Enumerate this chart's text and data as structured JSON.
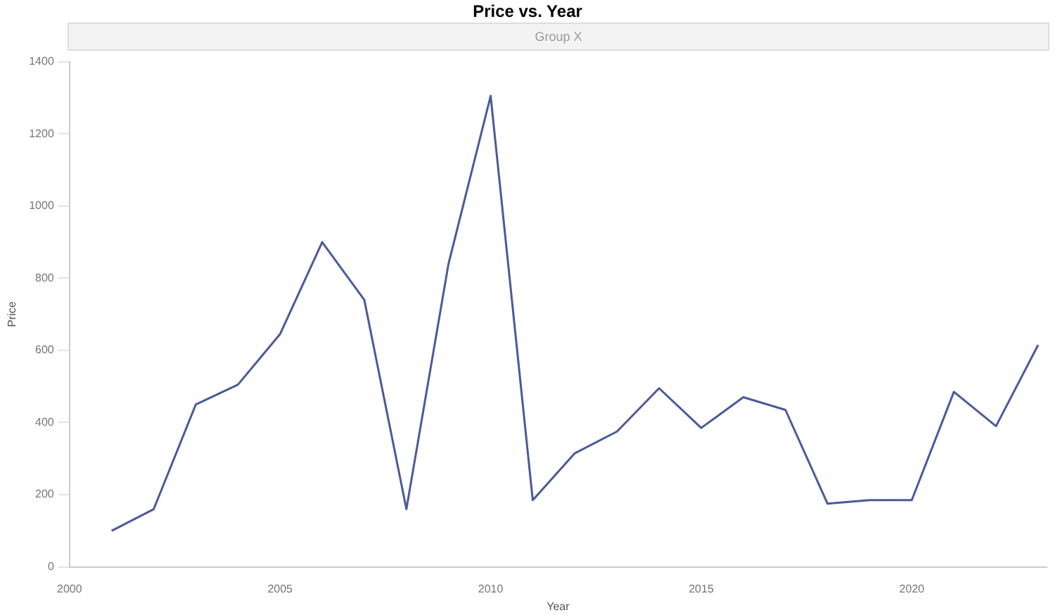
{
  "chart_data": {
    "type": "line",
    "title": "Price vs. Year",
    "subtitle": "Group X",
    "xlabel": "Year",
    "ylabel": "Price",
    "x": [
      2001,
      2002,
      2003,
      2004,
      2005,
      2006,
      2007,
      2008,
      2009,
      2010,
      2011,
      2012,
      2013,
      2014,
      2015,
      2016,
      2017,
      2018,
      2019,
      2020,
      2021,
      2022,
      2023
    ],
    "series": [
      {
        "color": "#4a5a9a",
        "values": [
          100,
          160,
          450,
          505,
          645,
          900,
          740,
          160,
          840,
          1305,
          185,
          315,
          375,
          495,
          385,
          470,
          435,
          175,
          185,
          185,
          485,
          390,
          615
        ]
      }
    ],
    "xlim": [
      2000,
      2023.2
    ],
    "xticks": [
      2000,
      2005,
      2010,
      2015,
      2020
    ],
    "ylim": [
      0,
      1400
    ],
    "yticks": [
      0,
      200,
      400,
      600,
      800,
      1000,
      1200,
      1400
    ],
    "grid": false,
    "legend": false,
    "marker": "none",
    "line_style": "solid"
  }
}
